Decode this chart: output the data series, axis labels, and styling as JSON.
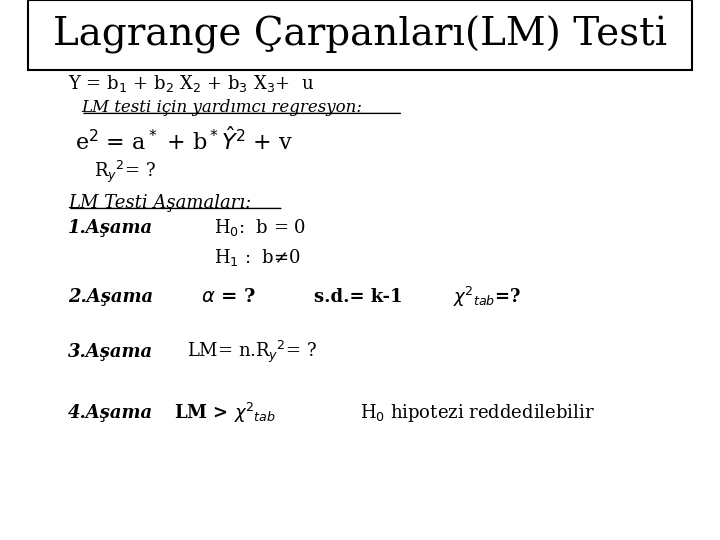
{
  "title": "Lagrange Çarpanları(LM) Testi",
  "bg_color": "#ffffff",
  "title_font_size": 28,
  "line1": "Y = b$_1$ + b$_2$ X$_2$ + b$_3$ X$_3$+  u",
  "line2": "LM testi için yardımcı regresyon:",
  "line4": "R$_y$$^2$= ?",
  "section": "LM Testi Aşamaları:",
  "asama1_label": "1.Aşama",
  "asama1_h0": "H$_0$:  b = 0",
  "asama1_h1": "H$_1$ :  b≠0",
  "asama2_label": "2.Aşama",
  "asama2_alpha": "$\\alpha$ = ?",
  "asama2_sd": "s.d.= k-1",
  "asama2_chi": "$\\chi$$^2$$_{tab}$=?",
  "asama3_label": "3.Aşama",
  "asama3_content": "LM= n.R$_y$$^2$= ?",
  "asama4_label": "4.Aşama",
  "asama4_lm": "LM > $\\chi$$^2$$_{tab}$",
  "asama4_h0": "H$_0$ hipotezi reddedilebilir"
}
